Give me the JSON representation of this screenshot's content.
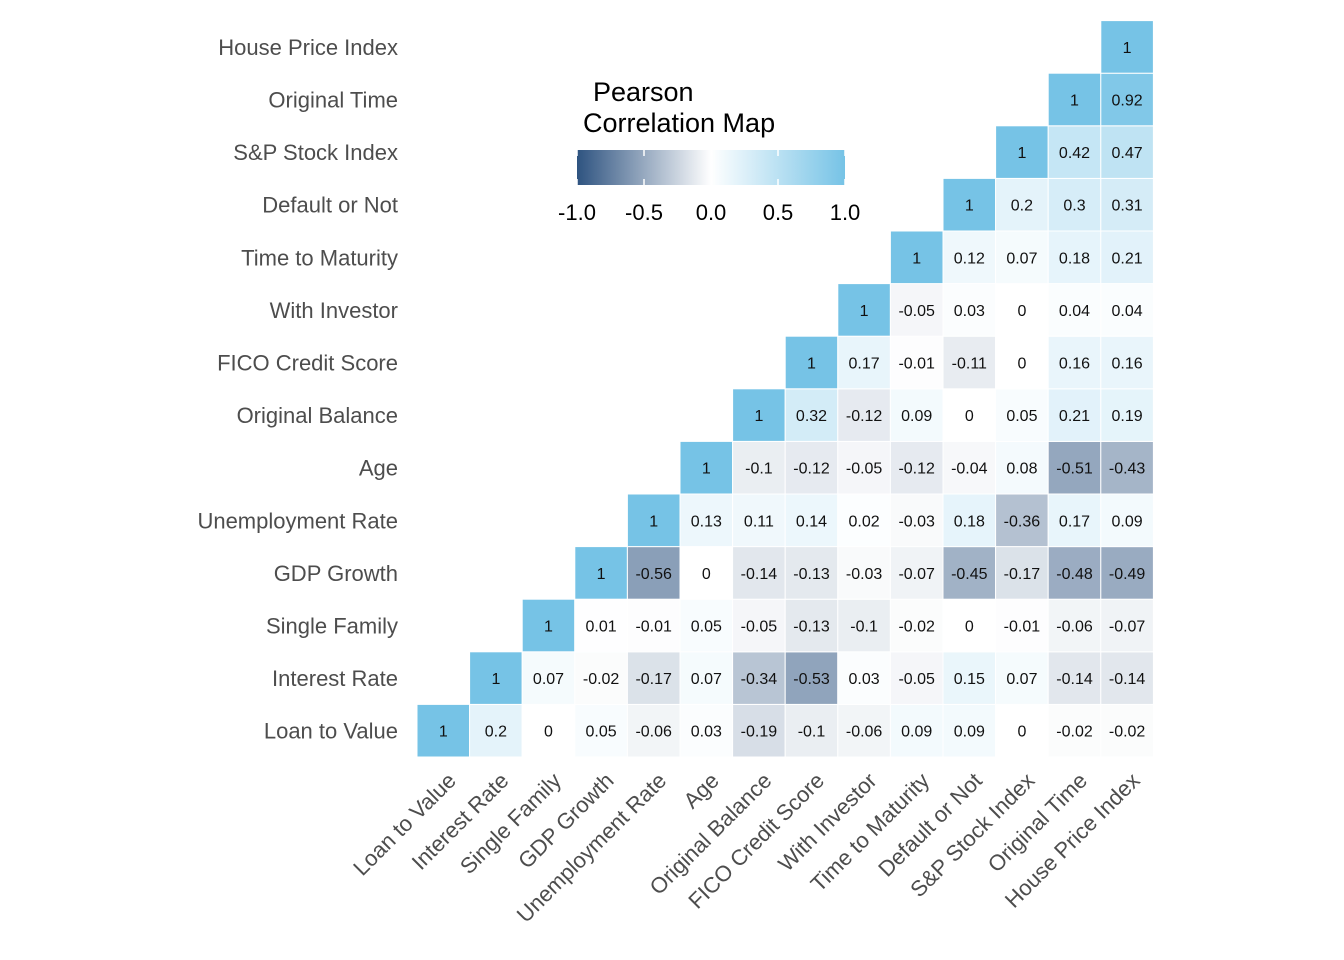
{
  "chart_data": {
    "type": "heatmap",
    "variables": [
      "Loan to Value",
      "Interest Rate",
      "Single Family",
      "GDP Growth",
      "Unemployment Rate",
      "Age",
      "Original Balance",
      "FICO Credit Score",
      "With Investor",
      "Time to Maturity",
      "Default or Not",
      "S&P Stock Index",
      "Original Time",
      "House Price Index"
    ],
    "matrix": [
      [
        1,
        0.2,
        0,
        0.05,
        -0.06,
        0.03,
        -0.19,
        -0.1,
        -0.06,
        0.09,
        0.09,
        0,
        -0.02,
        -0.02
      ],
      [
        null,
        1,
        0.07,
        -0.02,
        -0.17,
        0.07,
        -0.34,
        -0.53,
        0.03,
        -0.05,
        0.15,
        0.07,
        -0.14,
        -0.14
      ],
      [
        null,
        null,
        1,
        0.01,
        -0.01,
        0.05,
        -0.05,
        -0.13,
        -0.1,
        -0.02,
        0,
        -0.01,
        -0.06,
        -0.07
      ],
      [
        null,
        null,
        null,
        1,
        -0.56,
        0,
        -0.14,
        -0.13,
        -0.03,
        -0.07,
        -0.45,
        -0.17,
        -0.48,
        -0.49
      ],
      [
        null,
        null,
        null,
        null,
        1,
        0.13,
        0.11,
        0.14,
        0.02,
        -0.03,
        0.18,
        -0.36,
        0.17,
        0.09
      ],
      [
        null,
        null,
        null,
        null,
        null,
        1,
        -0.1,
        -0.12,
        -0.05,
        -0.12,
        -0.04,
        0.08,
        -0.51,
        -0.43
      ],
      [
        null,
        null,
        null,
        null,
        null,
        null,
        1,
        0.32,
        -0.12,
        0.09,
        0,
        0.05,
        0.21,
        0.19
      ],
      [
        null,
        null,
        null,
        null,
        null,
        null,
        null,
        1,
        0.17,
        -0.01,
        -0.11,
        0,
        0.16,
        0.16
      ],
      [
        null,
        null,
        null,
        null,
        null,
        null,
        null,
        null,
        1,
        -0.05,
        0.03,
        0,
        0.04,
        0.04
      ],
      [
        null,
        null,
        null,
        null,
        null,
        null,
        null,
        null,
        null,
        1,
        0.12,
        0.07,
        0.18,
        0.21
      ],
      [
        null,
        null,
        null,
        null,
        null,
        null,
        null,
        null,
        null,
        null,
        1,
        0.2,
        0.3,
        0.31
      ],
      [
        null,
        null,
        null,
        null,
        null,
        null,
        null,
        null,
        null,
        null,
        null,
        1,
        0.42,
        0.47
      ],
      [
        null,
        null,
        null,
        null,
        null,
        null,
        null,
        null,
        null,
        null,
        null,
        null,
        1,
        0.92
      ],
      [
        null,
        null,
        null,
        null,
        null,
        null,
        null,
        null,
        null,
        null,
        null,
        null,
        null,
        1
      ]
    ],
    "legend": {
      "title_lines": [
        "Pearson",
        "Correlation Map"
      ],
      "ticks": [
        "-1.0",
        "-0.5",
        "0.0",
        "0.5",
        "1.0"
      ],
      "tick_values": [
        -1,
        -0.5,
        0,
        0.5,
        1
      ],
      "range": [
        -1,
        1
      ]
    },
    "colors": {
      "low": "#2e5380",
      "mid": "#ffffff",
      "high": "#76c3e6"
    }
  }
}
